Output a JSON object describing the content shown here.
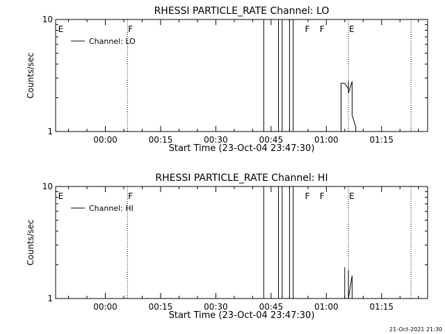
{
  "footer_timestamp": "21-Oct-2021 21:30",
  "chart_data": [
    {
      "type": "line",
      "title": "RHESSI PARTICLE_RATE Channel: LO",
      "xlabel": "Start Time (23-Oct-04 23:47:30)",
      "ylabel": "Counts/sec",
      "yscale": "log",
      "ylim": [
        1,
        10
      ],
      "y_tick_labels": [
        "1",
        "10"
      ],
      "x_tick_labels": [
        "00:00",
        "00:15",
        "00:30",
        "00:45",
        "01:00",
        "01:15"
      ],
      "legend": "top-left",
      "series": [
        {
          "name": "Channel: LO",
          "x": [
            "00:47",
            "00:47",
            "00:48",
            "00:48",
            "00:50",
            "00:50",
            "00:51",
            "00:51",
            "01:04",
            "01:04",
            "01:05",
            "01:05",
            "01:06",
            "01:06",
            "01:06",
            "01:07",
            "01:07",
            "01:07",
            "01:08",
            "01:08"
          ],
          "values": [
            1,
            10,
            10,
            1,
            1,
            10,
            10,
            1,
            1,
            2.7,
            2.7,
            2.7,
            2.4,
            2.8,
            2.2,
            2.8,
            2.0,
            1.4,
            1.1,
            1
          ]
        }
      ],
      "annotations": [
        {
          "label": "E",
          "time": "23:47"
        },
        {
          "label": "F",
          "time": "00:06"
        },
        {
          "label": "F",
          "time": "00:54"
        },
        {
          "label": "F",
          "time": "00:58"
        },
        {
          "label": "E",
          "time": "01:06"
        }
      ],
      "dotted_markers": [
        "00:06",
        "01:06",
        "01:23"
      ],
      "solid_markers": [
        "00:43"
      ]
    },
    {
      "type": "line",
      "title": "RHESSI PARTICLE_RATE Channel: HI",
      "xlabel": "Start Time (23-Oct-04 23:47:30)",
      "ylabel": "Counts/sec",
      "yscale": "log",
      "ylim": [
        1,
        10
      ],
      "y_tick_labels": [
        "1",
        "10"
      ],
      "x_tick_labels": [
        "00:00",
        "00:15",
        "00:30",
        "00:45",
        "01:00",
        "01:15"
      ],
      "legend": "top-left",
      "series": [
        {
          "name": "Channel: HI",
          "x": [
            "00:47",
            "00:47",
            "00:48",
            "00:48",
            "00:50",
            "00:50",
            "00:51",
            "00:51",
            "01:05",
            "01:05",
            "01:05",
            "01:06",
            "01:06",
            "01:06",
            "01:07",
            "01:07"
          ],
          "values": [
            1,
            10,
            10,
            1,
            1,
            10,
            10,
            1,
            1,
            1.9,
            1,
            1,
            1.8,
            1,
            1.6,
            1
          ]
        }
      ],
      "annotations": [
        {
          "label": "E",
          "time": "23:47"
        },
        {
          "label": "F",
          "time": "00:06"
        },
        {
          "label": "F",
          "time": "00:54"
        },
        {
          "label": "F",
          "time": "00:58"
        },
        {
          "label": "E",
          "time": "01:06"
        }
      ],
      "dotted_markers": [
        "00:06",
        "01:06",
        "01:23"
      ],
      "solid_markers": [
        "00:43"
      ]
    }
  ]
}
